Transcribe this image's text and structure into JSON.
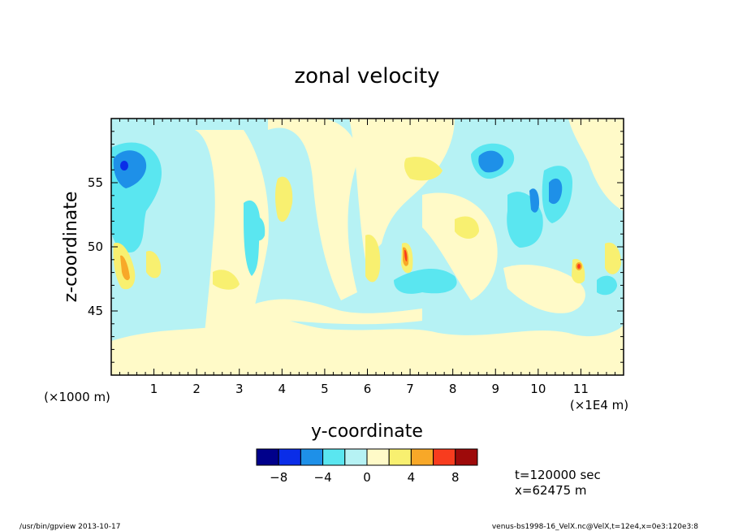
{
  "chart_data": {
    "type": "heatmap",
    "title": "zonal velocity",
    "xlabel": "y-coordinate",
    "ylabel": "z-coordinate",
    "x_scale_note": "(×1E4 m)",
    "y_scale_note": "(×1000 m)",
    "xlim": [
      0,
      12
    ],
    "ylim": [
      40,
      60
    ],
    "x_ticks": [
      "1",
      "2",
      "3",
      "4",
      "5",
      "6",
      "7",
      "8",
      "9",
      "10",
      "11"
    ],
    "y_ticks": [
      "45",
      "50",
      "55"
    ],
    "colorbar": {
      "levels": [
        -10,
        -8,
        -6,
        -4,
        -2,
        0,
        2,
        4,
        6,
        8,
        10
      ],
      "labels": [
        "-8",
        "-4",
        "0",
        "4",
        "8"
      ],
      "colors": [
        "#00008b",
        "#0a2de8",
        "#1e90e8",
        "#5ae6f0",
        "#b6f2f4",
        "#fffac8",
        "#f8f070",
        "#f8a828",
        "#f83c1e",
        "#9e0a0a"
      ]
    },
    "features": [
      {
        "y": 0.4,
        "z": 56.5,
        "value": -9
      },
      {
        "y": 0.5,
        "z": 52.0,
        "value": -3
      },
      {
        "y": 0.3,
        "z": 48.5,
        "value": 5
      },
      {
        "y": 3.4,
        "z": 50.0,
        "value": -3
      },
      {
        "y": 4.1,
        "z": 53.0,
        "value": 3
      },
      {
        "y": 6.8,
        "z": 49.8,
        "value": 7
      },
      {
        "y": 7.2,
        "z": 47.5,
        "value": -3
      },
      {
        "y": 8.8,
        "z": 56.2,
        "value": -7
      },
      {
        "y": 10.4,
        "z": 53.5,
        "value": -7
      },
      {
        "y": 10.5,
        "z": 51.0,
        "value": -3
      },
      {
        "y": 11.0,
        "z": 48.5,
        "value": 7
      },
      {
        "y": 11.5,
        "z": 50.0,
        "value": 3
      }
    ]
  },
  "annotations": {
    "time": "t=120000 sec",
    "position": "x=62475 m"
  },
  "footer": {
    "left": "/usr/bin/gpview  2013-10-17",
    "right": "venus-bs1998-16_VelX.nc@VelX,t=12e4,x=0e3:120e3:8"
  }
}
